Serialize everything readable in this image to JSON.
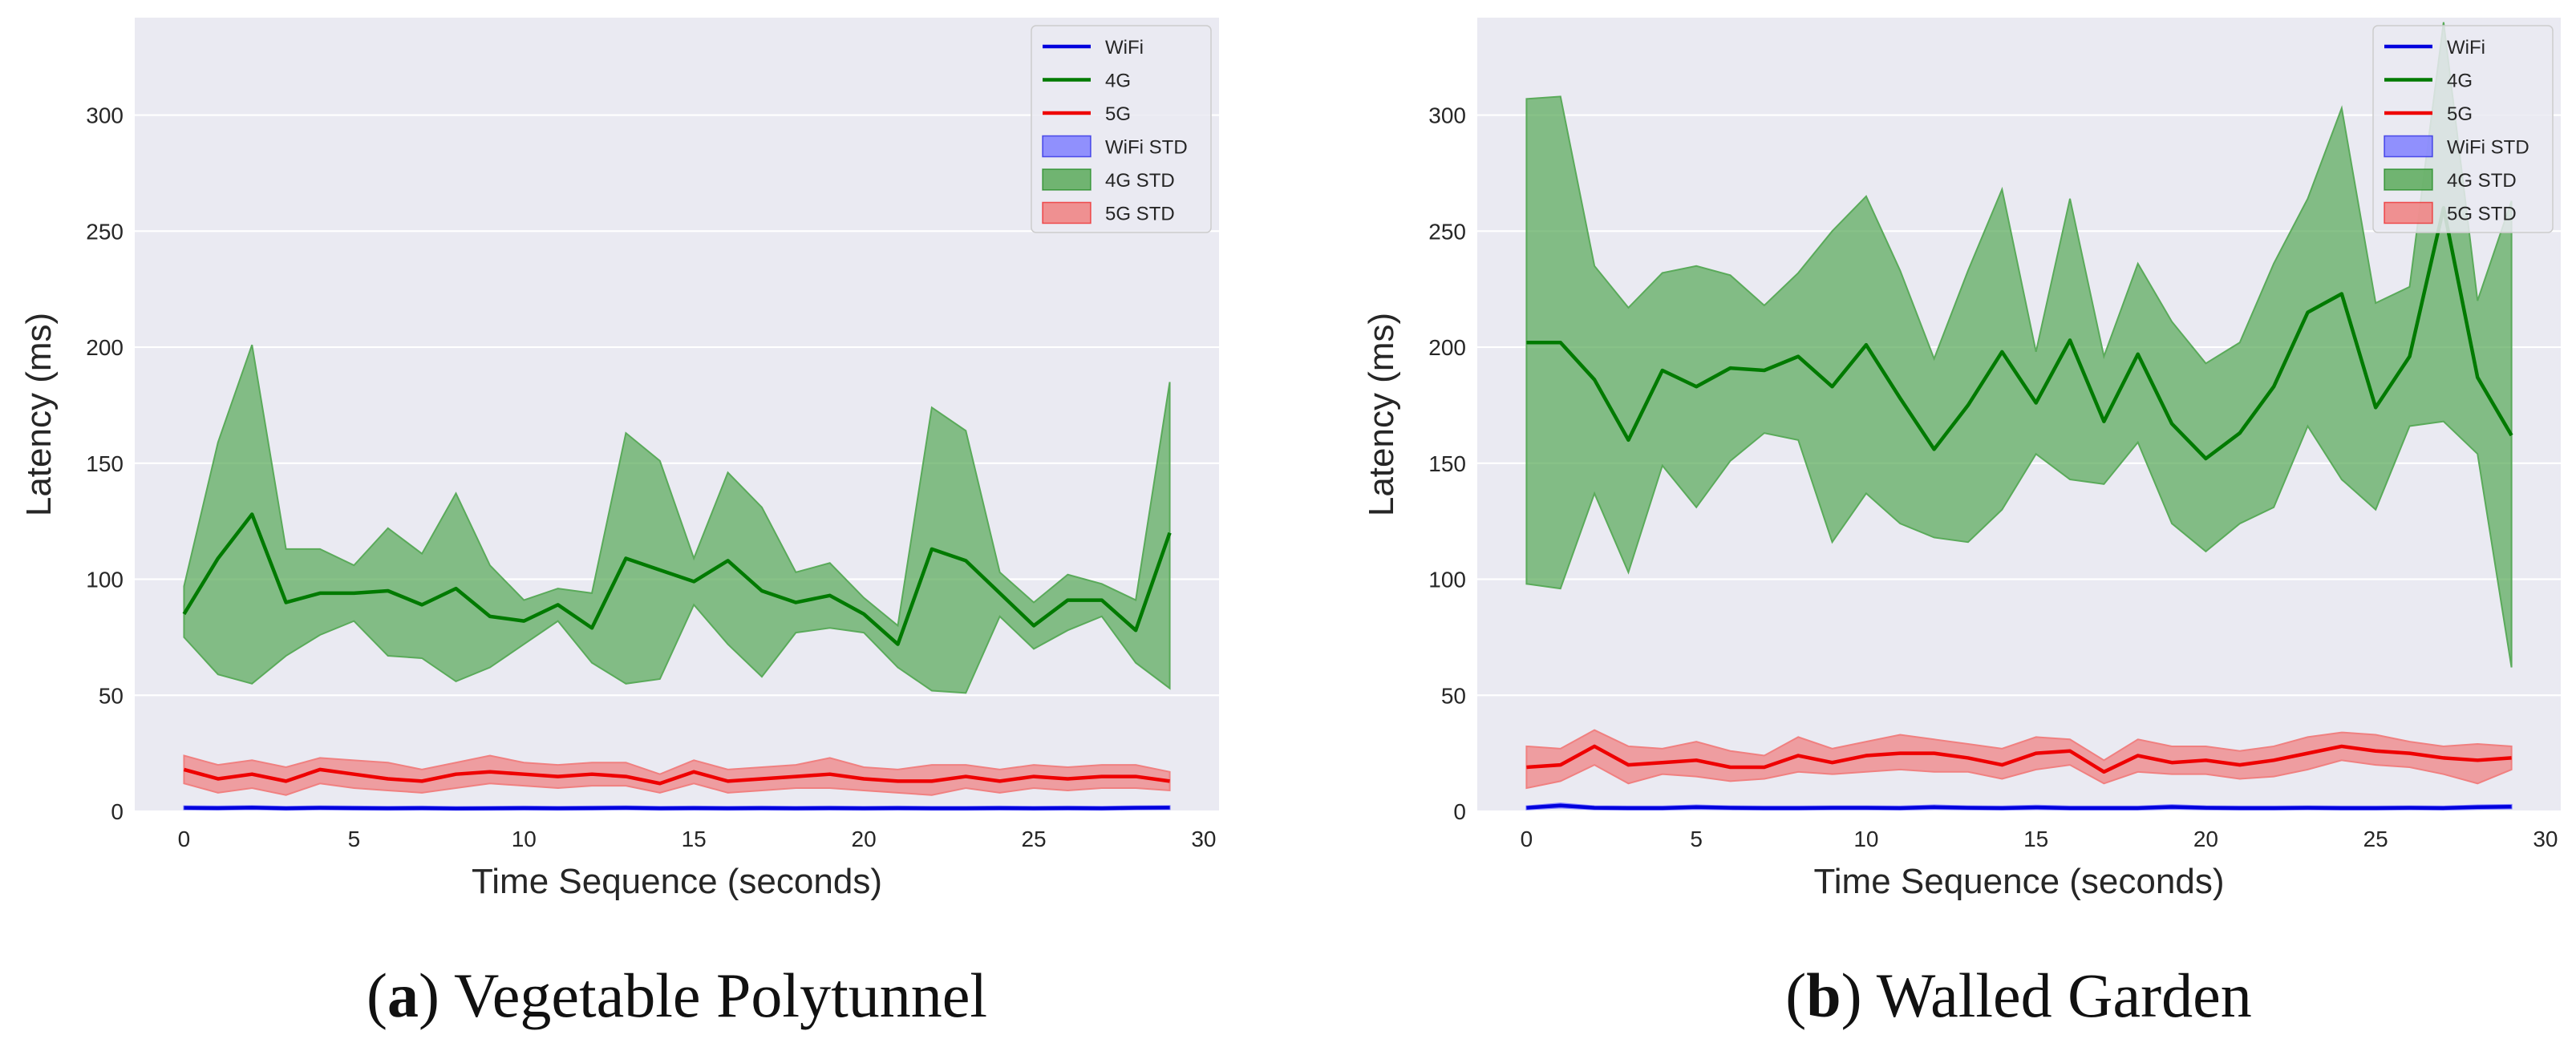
{
  "chart_data": [
    {
      "type": "line",
      "panel": "a",
      "caption_label": "a",
      "caption_title": "Vegetable Polytunnel",
      "xlabel": "Time Sequence (seconds)",
      "ylabel": "Latency (ms)",
      "xlim": [
        -1.45,
        30.45
      ],
      "ylim": [
        0,
        342
      ],
      "xticks": [
        0,
        5,
        10,
        15,
        20,
        25,
        30
      ],
      "yticks": [
        0,
        50,
        100,
        150,
        200,
        250,
        300
      ],
      "grid": true,
      "legend_position": "top-right",
      "x": [
        0,
        1,
        2,
        3,
        4,
        5,
        6,
        7,
        8,
        9,
        10,
        11,
        12,
        13,
        14,
        15,
        16,
        17,
        18,
        19,
        20,
        21,
        22,
        23,
        24,
        25,
        26,
        27,
        28,
        29
      ],
      "series": [
        {
          "name": "WiFi",
          "std_name": "WiFi STD",
          "color": "#0000dd",
          "fill": "#8080ff",
          "values": [
            1.5,
            1.4,
            1.6,
            1.3,
            1.5,
            1.4,
            1.3,
            1.4,
            1.2,
            1.3,
            1.4,
            1.3,
            1.4,
            1.5,
            1.3,
            1.4,
            1.3,
            1.4,
            1.3,
            1.4,
            1.3,
            1.4,
            1.3,
            1.3,
            1.4,
            1.3,
            1.4,
            1.3,
            1.5,
            1.6
          ],
          "lower": [
            0.8,
            0.7,
            0.9,
            0.6,
            0.8,
            0.7,
            0.6,
            0.7,
            0.6,
            0.6,
            0.7,
            0.6,
            0.7,
            0.8,
            0.6,
            0.7,
            0.6,
            0.7,
            0.6,
            0.7,
            0.6,
            0.7,
            0.6,
            0.6,
            0.7,
            0.6,
            0.7,
            0.6,
            0.8,
            0.9
          ],
          "upper": [
            2.2,
            2.1,
            2.3,
            2.0,
            2.2,
            2.1,
            2.0,
            2.1,
            1.9,
            2.0,
            2.1,
            2.0,
            2.1,
            2.2,
            2.0,
            2.1,
            2.0,
            2.1,
            2.0,
            2.1,
            2.0,
            2.1,
            2.0,
            2.0,
            2.1,
            2.0,
            2.1,
            2.0,
            2.2,
            2.3
          ]
        },
        {
          "name": "4G",
          "std_name": "4G STD",
          "color": "#007a00",
          "fill": "#5aaa5a",
          "values": [
            85,
            109,
            128,
            90,
            94,
            94,
            95,
            89,
            96,
            84,
            82,
            89,
            79,
            109,
            104,
            99,
            108,
            95,
            90,
            93,
            85,
            72,
            113,
            108,
            94,
            80,
            91,
            91,
            78,
            120
          ],
          "lower": [
            75,
            59,
            55,
            67,
            76,
            82,
            67,
            66,
            56,
            62,
            72,
            82,
            64,
            55,
            57,
            89,
            72,
            58,
            77,
            79,
            77,
            62,
            52,
            51,
            84,
            70,
            78,
            84,
            64,
            53
          ],
          "upper": [
            97,
            159,
            201,
            113,
            113,
            106,
            122,
            111,
            137,
            106,
            91,
            96,
            94,
            163,
            151,
            109,
            146,
            131,
            103,
            107,
            92,
            80,
            174,
            164,
            103,
            90,
            102,
            98,
            91,
            185
          ]
        },
        {
          "name": "5G",
          "std_name": "5G STD",
          "color": "#ee0000",
          "fill": "#f08080",
          "values": [
            18,
            14,
            16,
            13,
            18,
            16,
            14,
            13,
            16,
            17,
            16,
            15,
            16,
            15,
            12,
            17,
            13,
            14,
            15,
            16,
            14,
            13,
            13,
            15,
            13,
            15,
            14,
            15,
            15,
            13
          ],
          "lower": [
            12,
            8,
            10,
            7,
            12,
            10,
            9,
            8,
            10,
            12,
            11,
            10,
            11,
            11,
            8,
            12,
            8,
            9,
            10,
            10,
            9,
            8,
            7,
            10,
            8,
            10,
            9,
            10,
            10,
            9
          ],
          "upper": [
            24,
            20,
            22,
            19,
            23,
            22,
            21,
            18,
            21,
            24,
            21,
            20,
            21,
            21,
            16,
            22,
            18,
            19,
            20,
            23,
            19,
            18,
            20,
            20,
            18,
            20,
            19,
            20,
            20,
            17
          ]
        }
      ]
    },
    {
      "type": "line",
      "panel": "b",
      "caption_label": "b",
      "caption_title": "Walled Garden",
      "xlabel": "Time Sequence (seconds)",
      "ylabel": "Latency (ms)",
      "xlim": [
        -1.45,
        30.45
      ],
      "ylim": [
        0,
        342
      ],
      "xticks": [
        0,
        5,
        10,
        15,
        20,
        25,
        30
      ],
      "yticks": [
        0,
        50,
        100,
        150,
        200,
        250,
        300
      ],
      "grid": true,
      "legend_position": "top-right",
      "x": [
        0,
        1,
        2,
        3,
        4,
        5,
        6,
        7,
        8,
        9,
        10,
        11,
        12,
        13,
        14,
        15,
        16,
        17,
        18,
        19,
        20,
        21,
        22,
        23,
        24,
        25,
        26,
        27,
        28,
        29
      ],
      "series": [
        {
          "name": "WiFi",
          "std_name": "WiFi STD",
          "color": "#0000dd",
          "fill": "#8080ff",
          "values": [
            1.5,
            2.5,
            1.5,
            1.4,
            1.4,
            1.8,
            1.5,
            1.4,
            1.4,
            1.5,
            1.5,
            1.4,
            1.8,
            1.5,
            1.4,
            1.7,
            1.4,
            1.4,
            1.4,
            1.9,
            1.5,
            1.4,
            1.4,
            1.5,
            1.4,
            1.4,
            1.5,
            1.4,
            1.8,
            2.0
          ],
          "lower": [
            0.8,
            1.6,
            0.8,
            0.7,
            0.7,
            1.0,
            0.8,
            0.7,
            0.7,
            0.8,
            0.8,
            0.7,
            1.0,
            0.8,
            0.7,
            0.9,
            0.7,
            0.7,
            0.7,
            1.1,
            0.8,
            0.7,
            0.7,
            0.8,
            0.7,
            0.7,
            0.8,
            0.7,
            1.0,
            1.2
          ],
          "upper": [
            2.2,
            3.4,
            2.2,
            2.1,
            2.1,
            2.6,
            2.2,
            2.1,
            2.1,
            2.2,
            2.2,
            2.1,
            2.6,
            2.2,
            2.1,
            2.5,
            2.1,
            2.1,
            2.1,
            2.7,
            2.2,
            2.1,
            2.1,
            2.2,
            2.1,
            2.1,
            2.2,
            2.1,
            2.6,
            2.8
          ]
        },
        {
          "name": "4G",
          "std_name": "4G STD",
          "color": "#007a00",
          "fill": "#5aaa5a",
          "values": [
            202,
            202,
            186,
            160,
            190,
            183,
            191,
            190,
            196,
            183,
            201,
            178,
            156,
            175,
            198,
            176,
            203,
            168,
            197,
            167,
            152,
            163,
            183,
            215,
            223,
            174,
            196,
            260,
            187,
            162
          ],
          "lower": [
            98,
            96,
            137,
            103,
            149,
            131,
            151,
            163,
            160,
            116,
            137,
            124,
            118,
            116,
            130,
            154,
            143,
            141,
            159,
            124,
            112,
            124,
            131,
            166,
            143,
            130,
            166,
            168,
            154,
            62
          ],
          "upper": [
            307,
            308,
            235,
            217,
            232,
            235,
            231,
            218,
            232,
            250,
            265,
            233,
            195,
            233,
            268,
            198,
            264,
            196,
            236,
            211,
            193,
            202,
            236,
            264,
            303,
            219,
            226,
            340,
            220,
            263
          ]
        },
        {
          "name": "5G",
          "std_name": "5G STD",
          "color": "#ee0000",
          "fill": "#f08080",
          "values": [
            19,
            20,
            28,
            20,
            21,
            22,
            19,
            19,
            24,
            21,
            24,
            25,
            25,
            23,
            20,
            25,
            26,
            17,
            24,
            21,
            22,
            20,
            22,
            25,
            28,
            26,
            25,
            23,
            22,
            23
          ],
          "lower": [
            10,
            13,
            20,
            12,
            16,
            15,
            13,
            14,
            17,
            16,
            17,
            18,
            17,
            17,
            14,
            18,
            20,
            12,
            17,
            16,
            16,
            14,
            15,
            18,
            22,
            20,
            19,
            16,
            12,
            18
          ],
          "upper": [
            28,
            27,
            35,
            28,
            27,
            30,
            26,
            24,
            32,
            27,
            30,
            33,
            31,
            29,
            27,
            32,
            31,
            22,
            31,
            28,
            28,
            26,
            28,
            32,
            34,
            33,
            30,
            28,
            29,
            28
          ]
        }
      ]
    }
  ]
}
